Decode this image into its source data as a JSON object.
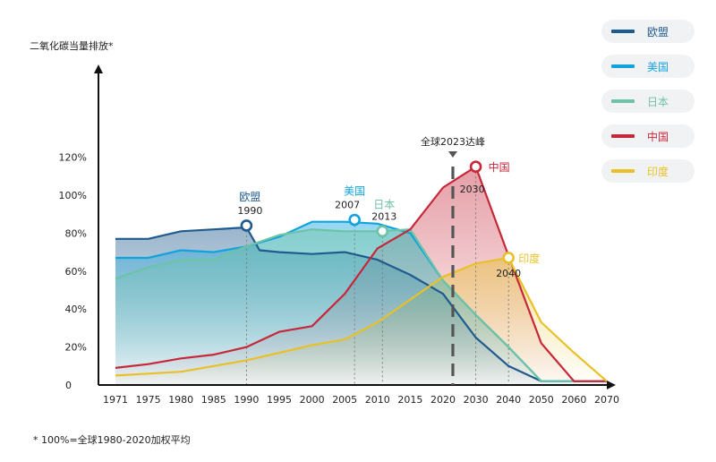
{
  "chart_data": {
    "type": "area",
    "ylabel": "二氧化碳当量排放*",
    "yticks": [
      "0",
      "20%",
      "40%",
      "60%",
      "80%",
      "100%",
      "120%"
    ],
    "ylim": [
      0,
      140
    ],
    "xticks": [
      "1971",
      "1975",
      "1980",
      "1985",
      "1990",
      "1995",
      "2000",
      "2005",
      "2010",
      "2015",
      "2020",
      "2030",
      "2040",
      "2050",
      "2060",
      "2070"
    ],
    "series": [
      {
        "name": "欧盟",
        "color": "#1f5b8e",
        "points": [
          [
            0,
            77
          ],
          [
            1,
            77
          ],
          [
            2,
            81
          ],
          [
            3,
            82
          ],
          [
            4,
            83
          ],
          [
            4.4,
            71
          ],
          [
            5,
            70
          ],
          [
            6,
            69
          ],
          [
            7,
            70
          ],
          [
            8,
            66
          ],
          [
            9,
            58
          ],
          [
            10,
            48
          ],
          [
            11,
            25
          ],
          [
            12,
            10
          ],
          [
            13,
            2
          ],
          [
            14,
            2
          ],
          [
            15,
            2
          ]
        ],
        "peak": {
          "label": "欧盟",
          "year": "1990",
          "x": 4,
          "y": 84
        }
      },
      {
        "name": "美国",
        "color": "#13a3dc",
        "points": [
          [
            0,
            67
          ],
          [
            1,
            67
          ],
          [
            2,
            71
          ],
          [
            3,
            70
          ],
          [
            4,
            73
          ],
          [
            5,
            78
          ],
          [
            6,
            86
          ],
          [
            7,
            86
          ],
          [
            8,
            85
          ],
          [
            9,
            80
          ],
          [
            10,
            55
          ],
          [
            11,
            37
          ],
          [
            12,
            20
          ],
          [
            13,
            2
          ],
          [
            14,
            2
          ],
          [
            15,
            2
          ]
        ],
        "peak": {
          "label": "美国",
          "year": "2007",
          "x": 7.3,
          "y": 87
        }
      },
      {
        "name": "日本",
        "color": "#6cc3a5",
        "points": [
          [
            0,
            56
          ],
          [
            1,
            62
          ],
          [
            2,
            66
          ],
          [
            3,
            66
          ],
          [
            4,
            73
          ],
          [
            5,
            79
          ],
          [
            6,
            82
          ],
          [
            7,
            81
          ],
          [
            8,
            81
          ],
          [
            9,
            82
          ],
          [
            10,
            55
          ],
          [
            11,
            37
          ],
          [
            12,
            20
          ],
          [
            13,
            2
          ],
          [
            14,
            2
          ],
          [
            15,
            2
          ]
        ],
        "peak": {
          "label": "日本",
          "year": "2013",
          "x": 8.15,
          "y": 81
        }
      },
      {
        "name": "中国",
        "color": "#c6283a",
        "points": [
          [
            0,
            9
          ],
          [
            1,
            11
          ],
          [
            2,
            14
          ],
          [
            3,
            16
          ],
          [
            4,
            20
          ],
          [
            5,
            28
          ],
          [
            6,
            31
          ],
          [
            7,
            48
          ],
          [
            8,
            72
          ],
          [
            9,
            82
          ],
          [
            10,
            104
          ],
          [
            11,
            115
          ],
          [
            12,
            68
          ],
          [
            13,
            22
          ],
          [
            14,
            2
          ],
          [
            15,
            2
          ]
        ],
        "peak": {
          "label": "中国",
          "year": "2030",
          "x": 11,
          "y": 115
        }
      },
      {
        "name": "印度",
        "color": "#e8c128",
        "points": [
          [
            0,
            5
          ],
          [
            1,
            6
          ],
          [
            2,
            7
          ],
          [
            3,
            10
          ],
          [
            4,
            13
          ],
          [
            5,
            17
          ],
          [
            6,
            21
          ],
          [
            7,
            24
          ],
          [
            8,
            33
          ],
          [
            9,
            45
          ],
          [
            10,
            57
          ],
          [
            11,
            64
          ],
          [
            12,
            67
          ],
          [
            13,
            33
          ],
          [
            14,
            17
          ],
          [
            15,
            2
          ]
        ],
        "peak": {
          "label": "印度",
          "year": "2040",
          "x": 12,
          "y": 67
        }
      }
    ],
    "annotation": {
      "label": "全球2023达峰",
      "x": 10.3
    }
  },
  "legend": [
    {
      "label": "欧盟",
      "color": "#1f5b8e"
    },
    {
      "label": "美国",
      "color": "#13a3dc"
    },
    {
      "label": "日本",
      "color": "#6cc3a5"
    },
    {
      "label": "中国",
      "color": "#c6283a"
    },
    {
      "label": "印度",
      "color": "#e8c128"
    }
  ],
  "footnote": "* 100%=全球1980-2020加权平均"
}
